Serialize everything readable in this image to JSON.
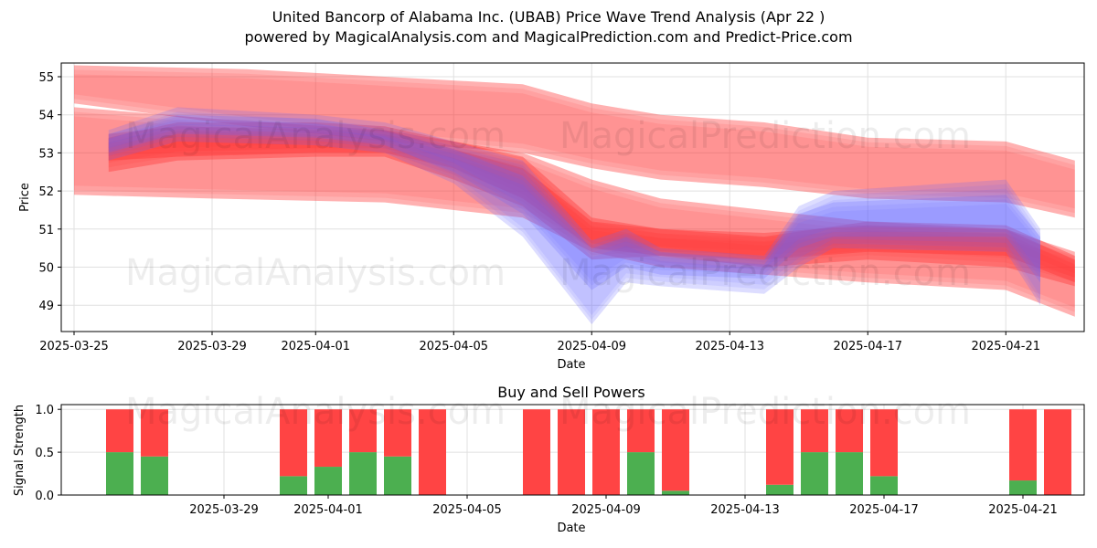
{
  "title_line1": "United Bancorp of Alabama Inc. (UBAB) Price Wave Trend Analysis (Apr 22 )",
  "title_line2": "powered by MagicalAnalysis.com and MagicalPrediction.com and Predict-Price.com",
  "watermarks": [
    "MagicalAnalysis.com",
    "MagicalPrediction.com",
    "MagicalAnalysis.com",
    "MagicalPrediction.com",
    "MagicalAnalysis.com",
    "MagicalPrediction.com"
  ],
  "colors": {
    "red": "#ff3333",
    "blue": "#6666ff",
    "green": "#4caf50",
    "sell": "#ff4444"
  },
  "chart_data": [
    {
      "type": "area",
      "title": "",
      "xlabel": "Date",
      "ylabel": "Price",
      "ylim": [
        48.3,
        55.4
      ],
      "yticks": [
        49,
        50,
        51,
        52,
        53,
        54,
        55
      ],
      "xticks": [
        "2025-03-25",
        "2025-03-29",
        "2025-04-01",
        "2025-04-05",
        "2025-04-09",
        "2025-04-13",
        "2025-04-17",
        "2025-04-21"
      ],
      "grid": true,
      "series": [
        {
          "color": "red",
          "x": [
            "2025-03-25",
            "2025-03-30",
            "2025-04-03",
            "2025-04-07",
            "2025-04-09",
            "2025-04-11",
            "2025-04-14",
            "2025-04-17",
            "2025-04-21",
            "2025-04-23"
          ],
          "upper": [
            55.3,
            55.2,
            55.0,
            54.8,
            54.3,
            54.0,
            53.8,
            53.4,
            53.3,
            52.8
          ],
          "lower": [
            54.3,
            53.7,
            53.3,
            53.0,
            52.6,
            52.3,
            52.1,
            51.8,
            51.7,
            51.3
          ]
        },
        {
          "color": "red",
          "x": [
            "2025-03-25",
            "2025-03-29",
            "2025-04-03",
            "2025-04-07",
            "2025-04-09",
            "2025-04-11",
            "2025-04-14",
            "2025-04-17",
            "2025-04-21",
            "2025-04-23"
          ],
          "upper": [
            54.2,
            53.9,
            53.6,
            53.0,
            52.3,
            51.8,
            51.5,
            51.2,
            51.0,
            50.4
          ],
          "lower": [
            51.9,
            51.8,
            51.7,
            51.3,
            50.4,
            50.0,
            49.8,
            49.6,
            49.4,
            48.7
          ]
        },
        {
          "color": "red",
          "x": [
            "2025-03-26",
            "2025-03-28",
            "2025-04-01",
            "2025-04-03",
            "2025-04-05",
            "2025-04-07",
            "2025-04-09",
            "2025-04-11",
            "2025-04-14",
            "2025-04-17",
            "2025-04-21",
            "2025-04-23"
          ],
          "upper": [
            53.4,
            53.8,
            53.8,
            53.7,
            53.3,
            52.9,
            51.3,
            51.0,
            50.8,
            51.2,
            51.1,
            50.3
          ],
          "lower": [
            52.5,
            52.8,
            52.9,
            52.9,
            52.3,
            51.6,
            50.2,
            50.3,
            50.0,
            50.2,
            50.0,
            49.5
          ]
        },
        {
          "color": "red",
          "x": [
            "2025-03-26",
            "2025-03-28",
            "2025-04-01",
            "2025-04-03",
            "2025-04-05",
            "2025-04-07",
            "2025-04-09",
            "2025-04-11",
            "2025-04-14",
            "2025-04-17",
            "2025-04-21",
            "2025-04-23"
          ],
          "upper": [
            53.5,
            53.7,
            53.6,
            53.6,
            53.1,
            52.6,
            51.2,
            51.0,
            50.9,
            51.1,
            51.0,
            50.2
          ],
          "lower": [
            52.8,
            52.9,
            53.0,
            53.0,
            52.6,
            51.8,
            50.5,
            50.3,
            50.2,
            50.4,
            50.3,
            49.6
          ]
        },
        {
          "color": "blue",
          "x": [
            "2025-03-26",
            "2025-03-28",
            "2025-04-01",
            "2025-04-03",
            "2025-04-05",
            "2025-04-07",
            "2025-04-09",
            "2025-04-10",
            "2025-04-11",
            "2025-04-14",
            "2025-04-15",
            "2025-04-16",
            "2025-04-21",
            "2025-04-22"
          ],
          "upper": [
            53.6,
            54.2,
            54.0,
            53.8,
            53.3,
            52.8,
            50.7,
            51.0,
            50.5,
            50.3,
            51.6,
            52.0,
            52.3,
            51.0
          ],
          "lower": [
            52.8,
            53.3,
            53.2,
            53.0,
            52.2,
            50.8,
            48.5,
            49.6,
            49.5,
            49.3,
            50.0,
            50.5,
            50.4,
            49.0
          ]
        },
        {
          "color": "blue",
          "x": [
            "2025-03-26",
            "2025-03-28",
            "2025-04-01",
            "2025-04-03",
            "2025-04-05",
            "2025-04-07",
            "2025-04-09",
            "2025-04-10",
            "2025-04-11",
            "2025-04-14",
            "2025-04-15",
            "2025-04-16",
            "2025-04-21",
            "2025-04-22"
          ],
          "upper": [
            53.5,
            54.0,
            53.9,
            53.6,
            53.1,
            52.4,
            50.5,
            50.8,
            50.4,
            50.2,
            51.4,
            51.7,
            51.9,
            50.8
          ],
          "lower": [
            53.0,
            53.5,
            53.4,
            53.2,
            52.5,
            51.4,
            49.4,
            50.0,
            49.8,
            49.7,
            50.5,
            50.8,
            50.8,
            49.6
          ]
        }
      ]
    },
    {
      "type": "bar",
      "title": "Buy and Sell Powers",
      "xlabel": "Date",
      "ylabel": "Signal Strength",
      "ylim": [
        0,
        1.05
      ],
      "yticks": [
        "0.0",
        "0.5",
        "1.0"
      ],
      "xticks": [
        "2025-03-29",
        "2025-04-01",
        "2025-04-05",
        "2025-04-09",
        "2025-04-13",
        "2025-04-17",
        "2025-04-21"
      ],
      "categories": [
        "2025-03-26",
        "2025-03-27",
        "2025-03-31",
        "2025-04-01",
        "2025-04-02",
        "2025-04-03",
        "2025-04-04",
        "2025-04-07",
        "2025-04-08",
        "2025-04-09",
        "2025-04-10",
        "2025-04-11",
        "2025-04-14",
        "2025-04-15",
        "2025-04-16",
        "2025-04-17",
        "2025-04-21",
        "2025-04-22"
      ],
      "series": [
        {
          "name": "Buy",
          "values": [
            0.5,
            0.45,
            0.22,
            0.33,
            0.5,
            0.45,
            0,
            0,
            0,
            0,
            0.5,
            0.05,
            0.12,
            0.5,
            0.5,
            0.22,
            0.17,
            0
          ]
        },
        {
          "name": "Sell",
          "values": [
            0.5,
            0.55,
            0.78,
            0.67,
            0.5,
            0.55,
            1.0,
            1.0,
            1.0,
            1.0,
            0.5,
            0.95,
            0.88,
            0.5,
            0.5,
            0.78,
            0.83,
            1.0
          ]
        }
      ]
    }
  ]
}
